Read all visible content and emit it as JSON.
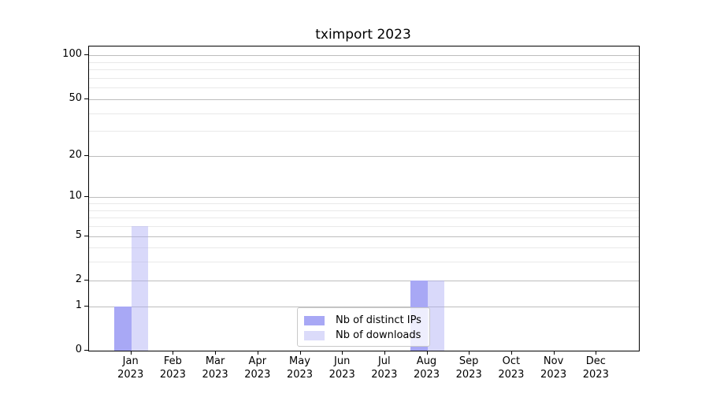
{
  "chart_data": {
    "type": "bar",
    "title": "tximport 2023",
    "categories": [
      "Jan",
      "Feb",
      "Mar",
      "Apr",
      "May",
      "Jun",
      "Jul",
      "Aug",
      "Sep",
      "Oct",
      "Nov",
      "Dec"
    ],
    "year_label": "2023",
    "series": [
      {
        "key": "distinct-ips",
        "name": "Nb of distinct IPs",
        "color": "#a8a8f5",
        "values": [
          1,
          0,
          0,
          0,
          0,
          0,
          0,
          2,
          0,
          0,
          0,
          0
        ]
      },
      {
        "key": "downloads",
        "name": "Nb of downloads",
        "color": "rgba(170,170,245,0.45)",
        "legend_color": "#dbdbfa",
        "values": [
          6,
          0,
          0,
          0,
          0,
          0,
          0,
          2,
          0,
          0,
          0,
          0
        ]
      }
    ],
    "xlabel": "",
    "ylabel": "",
    "scale": "log1p",
    "yticks": [
      0,
      1,
      2,
      5,
      10,
      20,
      50,
      100
    ],
    "minor_gridlines": [
      3,
      4,
      6,
      7,
      8,
      9,
      30,
      40,
      60,
      70,
      80,
      90
    ],
    "ylim": [
      0,
      115
    ],
    "grid": {
      "major_color": "#bdbdbd",
      "minor_color": "#e9e9e9"
    },
    "legend_position": "lower center",
    "frame": true
  }
}
